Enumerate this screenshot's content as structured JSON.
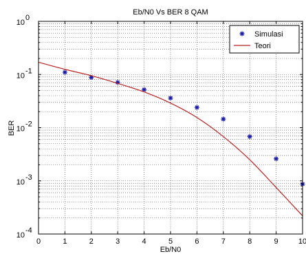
{
  "chart_data": {
    "type": "line",
    "title": "Eb/N0 Vs BER 8 QAM",
    "xlabel": "Eb/N0",
    "ylabel": "BER",
    "xlim": [
      0,
      10
    ],
    "ylim": [
      0.0001,
      1
    ],
    "yscale": "log",
    "grid": true,
    "grid_style": "dotted",
    "legend_position": "top-right",
    "x_ticks": [
      0,
      1,
      2,
      3,
      4,
      5,
      6,
      7,
      8,
      9,
      10
    ],
    "x_tick_labels": [
      "0",
      "1",
      "2",
      "3",
      "4",
      "5",
      "6",
      "7",
      "8",
      "9",
      "10"
    ],
    "y_ticks": [
      0.0001,
      0.001,
      0.01,
      0.1,
      1
    ],
    "y_tick_labels": [
      {
        "base": "10",
        "exp": "-4"
      },
      {
        "base": "10",
        "exp": "-3"
      },
      {
        "base": "10",
        "exp": "-2"
      },
      {
        "base": "10",
        "exp": "-1"
      },
      {
        "base": "10",
        "exp": "0"
      }
    ],
    "series": [
      {
        "name": "Simulasi",
        "style": "marker",
        "marker": "asterisk",
        "color": "#1a1aa6",
        "x": [
          1,
          2,
          3,
          4,
          5,
          6,
          7,
          8,
          9,
          10
        ],
        "y": [
          0.11,
          0.088,
          0.071,
          0.052,
          0.036,
          0.024,
          0.0145,
          0.0068,
          0.0026,
          0.00087
        ]
      },
      {
        "name": "Teori",
        "style": "line",
        "color": "#b52020",
        "x": [
          0,
          1,
          2,
          3,
          4,
          5,
          6,
          7,
          8,
          9,
          10
        ],
        "y": [
          0.17,
          0.125,
          0.095,
          0.068,
          0.047,
          0.029,
          0.0155,
          0.0068,
          0.0025,
          0.00075,
          0.00022
        ]
      }
    ]
  }
}
